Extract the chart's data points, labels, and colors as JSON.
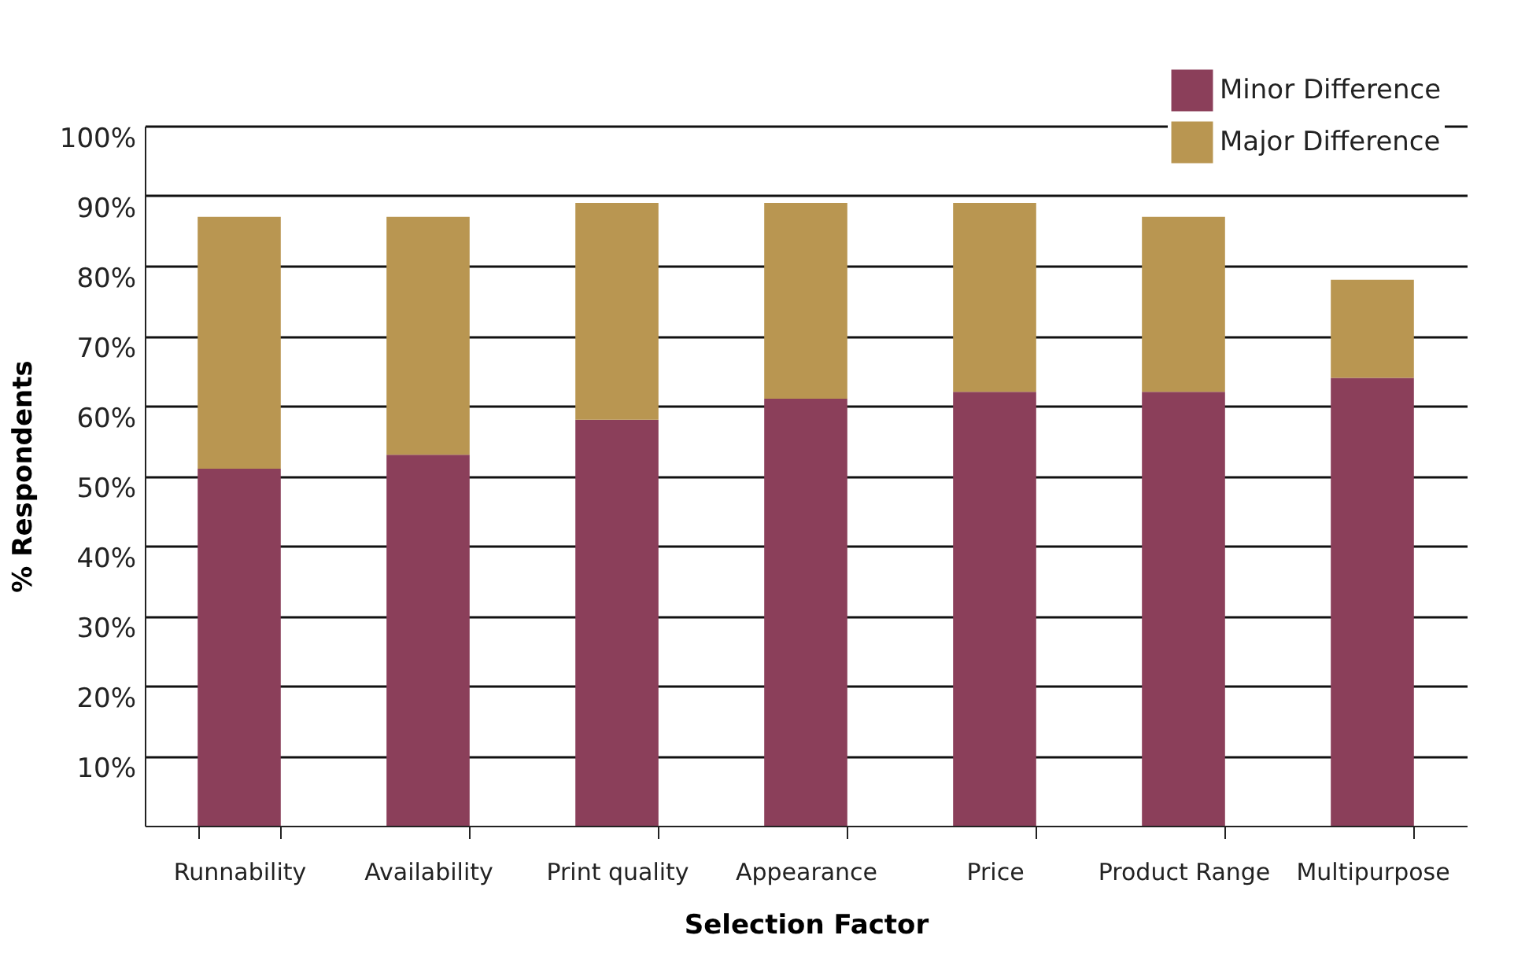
{
  "chart_data": {
    "type": "bar",
    "xlabel": "Selection Factor",
    "ylabel": "% Respondents",
    "categories": [
      "Runnability",
      "Availability",
      "Print quality",
      "Appearance",
      "Price",
      "Product Range",
      "Multipurpose"
    ],
    "stacked": true,
    "series": [
      {
        "name": "Minor Difference",
        "color": "#8b3f5a",
        "values": [
          51,
          53,
          58,
          61,
          62,
          62,
          64
        ]
      },
      {
        "name": "Major Difference",
        "color": "#b99651",
        "values": [
          36,
          34,
          31,
          28,
          27,
          25,
          14
        ]
      }
    ],
    "ylim": [
      0,
      100
    ],
    "yticks": [
      {
        "value": 10,
        "label": "10%"
      },
      {
        "value": 20,
        "label": "20%"
      },
      {
        "value": 30,
        "label": "30%"
      },
      {
        "value": 40,
        "label": "40%"
      },
      {
        "value": 50,
        "label": "50%"
      },
      {
        "value": 60,
        "label": "60%"
      },
      {
        "value": 70,
        "label": "70%"
      },
      {
        "value": 80,
        "label": "80%"
      },
      {
        "value": 90,
        "label": "90%"
      },
      {
        "value": 100,
        "label": "100%"
      }
    ],
    "grid": "y",
    "legend": "top right"
  }
}
